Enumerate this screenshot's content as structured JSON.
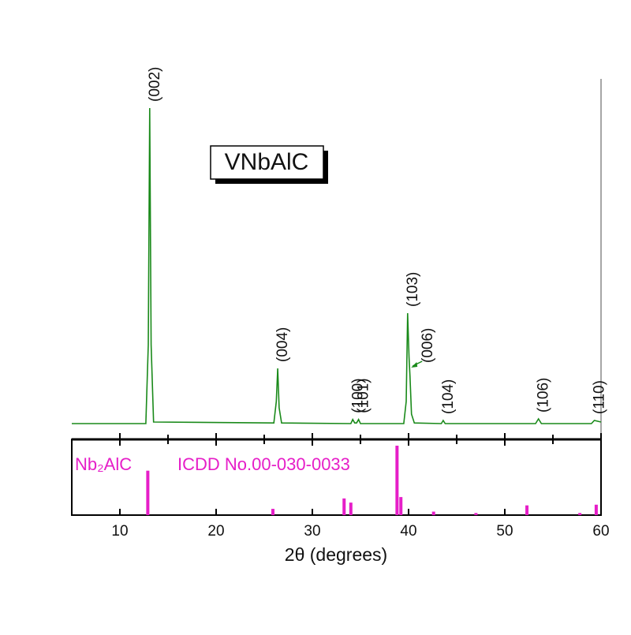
{
  "chart_data": [
    {
      "type": "line",
      "title": "VNbAlC",
      "x": [
        5,
        12.7,
        12.95,
        13.1,
        13.25,
        13.5,
        26.0,
        26.25,
        26.4,
        26.55,
        26.8,
        34.0,
        34.2,
        34.4,
        34.6,
        34.8,
        35.0,
        39.5,
        39.75,
        39.9,
        40.05,
        40.15,
        40.3,
        40.6,
        43.4,
        43.6,
        43.8,
        53.2,
        53.5,
        53.8,
        59.0,
        59.3,
        60
      ],
      "series": [
        {
          "color": "#1a8a1a",
          "values": [
            5,
            5,
            30,
            105,
            30,
            5.5,
            5.2,
            12,
            22.5,
            10,
            5.2,
            5,
            6.3,
            5.2,
            5.2,
            6.3,
            5,
            5,
            12,
            40,
            26,
            20,
            8,
            5.2,
            5,
            6,
            5,
            5,
            6.5,
            5,
            5,
            6,
            5.5
          ]
        }
      ],
      "annotations": [
        {
          "text": "(002)",
          "x": 13.1
        },
        {
          "text": "(004)",
          "x": 26.4
        },
        {
          "text": "(100)",
          "x": 34.2
        },
        {
          "text": "(101)",
          "x": 34.8
        },
        {
          "text": "(103)",
          "x": 39.9
        },
        {
          "text": "(006)",
          "x": 40.1
        },
        {
          "text": "(104)",
          "x": 43.6
        },
        {
          "text": "(106)",
          "x": 53.5
        },
        {
          "text": "(110)",
          "x": 59.3
        }
      ],
      "xlim": [
        5,
        60
      ],
      "ylim": [
        0,
        110
      ]
    },
    {
      "type": "stick",
      "label": "Nb₂AlC",
      "reference": "ICDD No.00-030-0033",
      "xlabel": "2θ (degrees)",
      "x": [
        12.9,
        25.9,
        33.3,
        34.0,
        38.8,
        39.2,
        42.6,
        47.0,
        52.3,
        57.8,
        59.5
      ],
      "values": [
        64,
        9,
        24,
        18,
        100,
        26,
        5,
        3,
        14,
        3,
        15
      ],
      "color": "#e61ec8",
      "xlim": [
        5,
        60
      ],
      "ylim": [
        0,
        100
      ],
      "xticks": [
        10,
        20,
        30,
        40,
        50,
        60
      ],
      "xminorticks": [
        15,
        25,
        35,
        45,
        55
      ]
    }
  ]
}
